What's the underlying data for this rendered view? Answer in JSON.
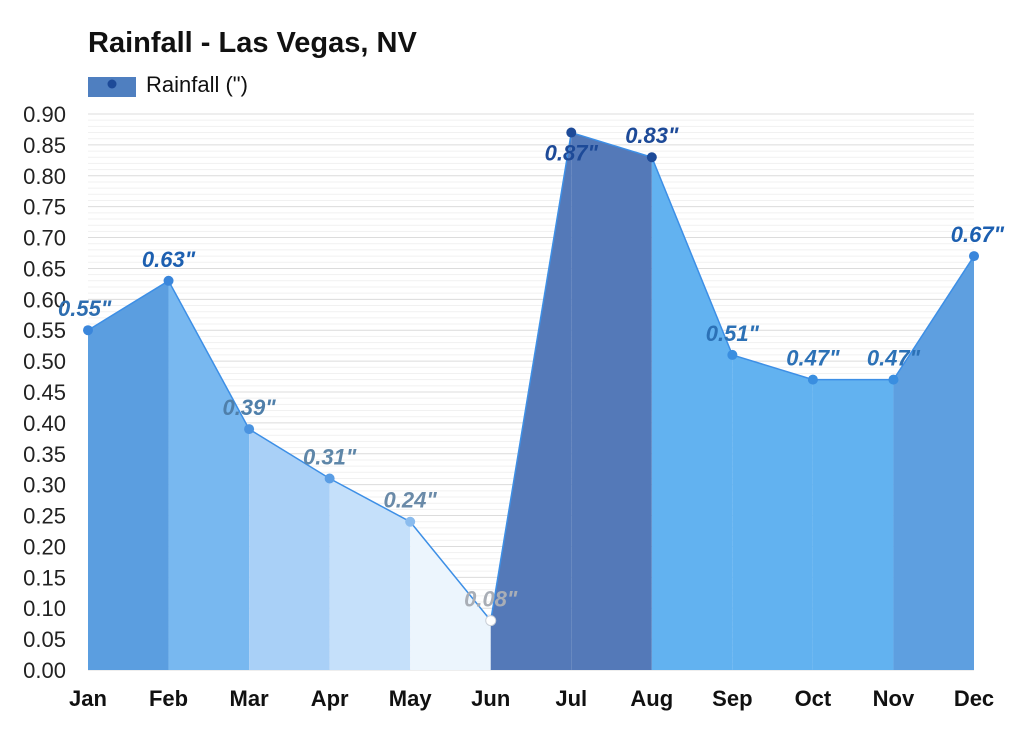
{
  "chart_data": {
    "type": "area",
    "title": "Rainfall - Las Vegas, NV",
    "categories": [
      "Jan",
      "Feb",
      "Mar",
      "Apr",
      "May",
      "Jun",
      "Jul",
      "Aug",
      "Sep",
      "Oct",
      "Nov",
      "Dec"
    ],
    "series": [
      {
        "name": "Rainfall (\")",
        "values": [
          0.55,
          0.63,
          0.39,
          0.31,
          0.24,
          0.08,
          0.87,
          0.83,
          0.51,
          0.47,
          0.47,
          0.67
        ],
        "labels": [
          "0.55\"",
          "0.63\"",
          "0.39\"",
          "0.31\"",
          "0.24\"",
          "0.08\"",
          "0.87\"",
          "0.83\"",
          "0.51\"",
          "0.47\"",
          "0.47\"",
          "0.67\""
        ]
      }
    ],
    "y_ticks": [
      "0.00",
      "0.05",
      "0.10",
      "0.15",
      "0.20",
      "0.25",
      "0.30",
      "0.35",
      "0.40",
      "0.45",
      "0.50",
      "0.55",
      "0.60",
      "0.65",
      "0.70",
      "0.75",
      "0.80",
      "0.85",
      "0.90"
    ],
    "ylim": [
      0,
      0.9
    ],
    "grid": true,
    "legend_position": "top-left",
    "segment_colors": [
      "#5b9ee0",
      "#78b8f0",
      "#a9d0f7",
      "#c5e0fa",
      "#ecf5fd",
      "#5479b8",
      "#5479b8",
      "#62b2f0",
      "#62b2f0",
      "#62b2f0",
      "#5e9fe0"
    ],
    "label_colors": [
      "#2d6db0",
      "#1c5fb0",
      "#4f7faa",
      "#5e86a8",
      "#6a8aa8",
      "#a9aeb6",
      "#1d4a98",
      "#1d4a98",
      "#2c71b6",
      "#2c71b6",
      "#2c71b6",
      "#1c5fb0"
    ],
    "point_colors": [
      "#3a86db",
      "#3a86db",
      "#4a93e0",
      "#5a9de4",
      "#8bbcee",
      "#ffffff",
      "#1d4a98",
      "#1d4a98",
      "#3a8ee0",
      "#3a8ee0",
      "#3a8ee0",
      "#3a86db"
    ],
    "line_color": "#3d8fe6",
    "legend_swatch_color": "#4f7fc0",
    "legend_marker_color": "#1d4a98"
  }
}
